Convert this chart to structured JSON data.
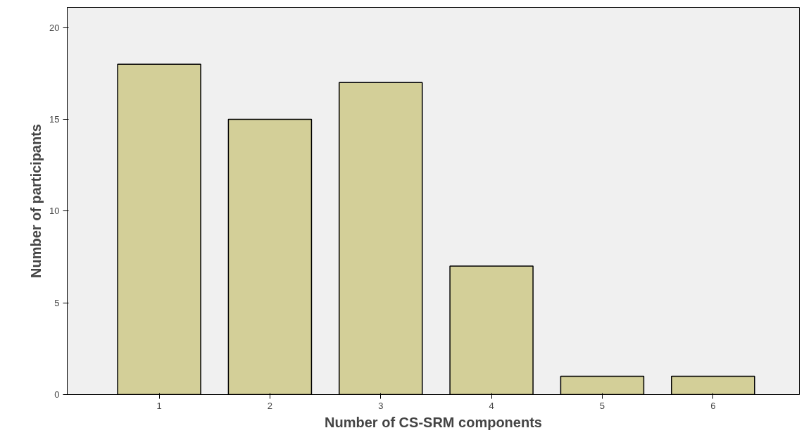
{
  "chart_data": {
    "type": "bar",
    "xlabel": "Number of CS-SRM components",
    "ylabel": "Number of participants",
    "categories": [
      "1",
      "2",
      "3",
      "4",
      "5",
      "6"
    ],
    "values": [
      18,
      15,
      17,
      7,
      1,
      1
    ],
    "color": "#d3cf98",
    "ylim": [
      0,
      21.1
    ],
    "yticks": [
      0,
      5,
      10,
      15,
      20
    ],
    "grid": false
  }
}
